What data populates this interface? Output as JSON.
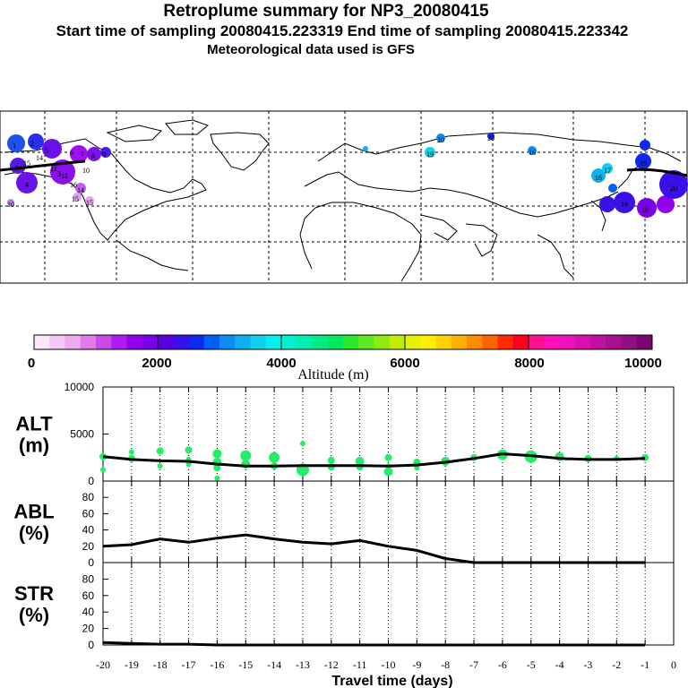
{
  "header": {
    "title": "Retroplume summary for NP3_20080415",
    "sampling": "Start time of sampling 20080415.223319     End time of sampling 20080415.223342",
    "met": "Meteorological data used is GFS"
  },
  "map": {
    "plume_labels": [
      "1",
      "2",
      "5",
      "4",
      "4",
      "3",
      "6",
      "7",
      "8",
      "9",
      "11",
      "11",
      "14",
      "15",
      "15",
      "16",
      "10",
      "10",
      "15",
      "14",
      "19",
      "20",
      "20",
      "16",
      "16",
      "17",
      "18",
      "19",
      "19",
      "20"
    ]
  },
  "colorbar": {
    "tick_labels": [
      "0",
      "2000",
      "4000",
      "6000",
      "8000",
      "10000"
    ],
    "axis_label": "Altitude (m)",
    "colors": [
      "#fbe6fb",
      "#f5c8f5",
      "#eeaaee",
      "#e07ce8",
      "#c94ae8",
      "#b01cf0",
      "#9400ee",
      "#7a00ea",
      "#5a00e0",
      "#3a10e8",
      "#1028f0",
      "#005ff5",
      "#0a8ef5",
      "#10b0f0",
      "#10d0f0",
      "#00f0f0",
      "#00f0d0",
      "#00eeb0",
      "#00ea88",
      "#00e860",
      "#28e830",
      "#60e820",
      "#90ea10",
      "#c0ee00",
      "#e6f200",
      "#fff000",
      "#ffd400",
      "#ffb000",
      "#ff8c00",
      "#ff6200",
      "#ff2a00",
      "#ff0020",
      "#ff1090",
      "#ff10b8",
      "#f010c0",
      "#d810b0",
      "#c010a0",
      "#a81090",
      "#901080",
      "#780870"
    ]
  },
  "chart_data": [
    {
      "type": "line",
      "panel": "ALT",
      "ylabel": "ALT\n(m)",
      "xlabel": "Travel time (days)",
      "x": [
        -20,
        -19,
        -18,
        -17,
        -16,
        -15,
        -14,
        -13,
        -12,
        -11,
        -10,
        -9,
        -8,
        -7,
        -6,
        -5,
        -4,
        -3,
        -2,
        -1
      ],
      "values": [
        2600,
        2300,
        2150,
        2100,
        1800,
        1600,
        1600,
        1650,
        1650,
        1650,
        1600,
        1700,
        2000,
        2400,
        2900,
        2700,
        2400,
        2300,
        2300,
        2400
      ],
      "yticks": [
        "10000",
        "5000",
        "0"
      ],
      "ylim": [
        0,
        10000
      ],
      "xlim": [
        -20,
        0
      ],
      "scatter": [
        {
          "x": -20,
          "y": 2600
        },
        {
          "x": -20,
          "y": 1200
        },
        {
          "x": -19,
          "y": 3100
        },
        {
          "x": -19,
          "y": 2400
        },
        {
          "x": -18,
          "y": 3200
        },
        {
          "x": -18,
          "y": 1600
        },
        {
          "x": -17,
          "y": 3300
        },
        {
          "x": -17,
          "y": 2300
        },
        {
          "x": -17,
          "y": 1800
        },
        {
          "x": -16,
          "y": 2900
        },
        {
          "x": -16,
          "y": 2000
        },
        {
          "x": -16,
          "y": 1400
        },
        {
          "x": -16,
          "y": 300
        },
        {
          "x": -15,
          "y": 2700
        },
        {
          "x": -15,
          "y": 1800
        },
        {
          "x": -14,
          "y": 2500
        },
        {
          "x": -14,
          "y": 1600
        },
        {
          "x": -13,
          "y": 4000
        },
        {
          "x": -13,
          "y": 1200
        },
        {
          "x": -12,
          "y": 2200
        },
        {
          "x": -12,
          "y": 1500
        },
        {
          "x": -11,
          "y": 2100
        },
        {
          "x": -11,
          "y": 1500
        },
        {
          "x": -10,
          "y": 2500
        },
        {
          "x": -10,
          "y": 1600
        },
        {
          "x": -10,
          "y": 1000
        },
        {
          "x": -9,
          "y": 2000
        },
        {
          "x": -9,
          "y": 1400
        },
        {
          "x": -8,
          "y": 2100
        },
        {
          "x": -7,
          "y": 2500
        },
        {
          "x": -6,
          "y": 2800
        },
        {
          "x": -5,
          "y": 2600
        },
        {
          "x": -4,
          "y": 2600
        },
        {
          "x": -3,
          "y": 2400
        },
        {
          "x": -2,
          "y": 2400
        },
        {
          "x": -1,
          "y": 2500
        }
      ],
      "scatter_color": "#22ee66"
    },
    {
      "type": "line",
      "panel": "ABL",
      "ylabel": "ABL\n(%)",
      "x": [
        -20,
        -19,
        -18,
        -17,
        -16,
        -15,
        -14,
        -13,
        -12,
        -11,
        -10,
        -9,
        -8,
        -7,
        -6,
        -5,
        -4,
        -3,
        -2,
        -1
      ],
      "values": [
        20,
        22,
        29,
        25,
        30,
        34,
        29,
        25,
        23,
        27,
        20,
        15,
        5,
        0,
        0,
        0,
        0,
        0,
        0,
        0
      ],
      "yticks": [
        "80",
        "60",
        "40",
        "20",
        "0"
      ],
      "ylim": [
        0,
        100
      ]
    },
    {
      "type": "line",
      "panel": "STR",
      "ylabel": "STR\n(%)",
      "x": [
        -20,
        -19,
        -18,
        -17,
        -16,
        -15,
        -14,
        -13,
        -12,
        -11,
        -10,
        -9,
        -8,
        -7,
        -6,
        -5,
        -4,
        -3,
        -2,
        -1
      ],
      "values": [
        3,
        2,
        1,
        1,
        0,
        0,
        0,
        0,
        0,
        0,
        0,
        0,
        0,
        0,
        0,
        0,
        0,
        0,
        0,
        0
      ],
      "yticks": [
        "80",
        "60",
        "40",
        "20",
        "0"
      ],
      "ylim": [
        0,
        100
      ]
    }
  ],
  "xaxis": {
    "tick_labels": [
      "-20",
      "-19",
      "-18",
      "-17",
      "-16",
      "-15",
      "-14",
      "-13",
      "-12",
      "-11",
      "-10",
      "-9",
      "-8",
      "-7",
      "-6",
      "-5",
      "-4",
      "-3",
      "-2",
      "-1",
      "0"
    ],
    "label": "Travel time (days)"
  }
}
